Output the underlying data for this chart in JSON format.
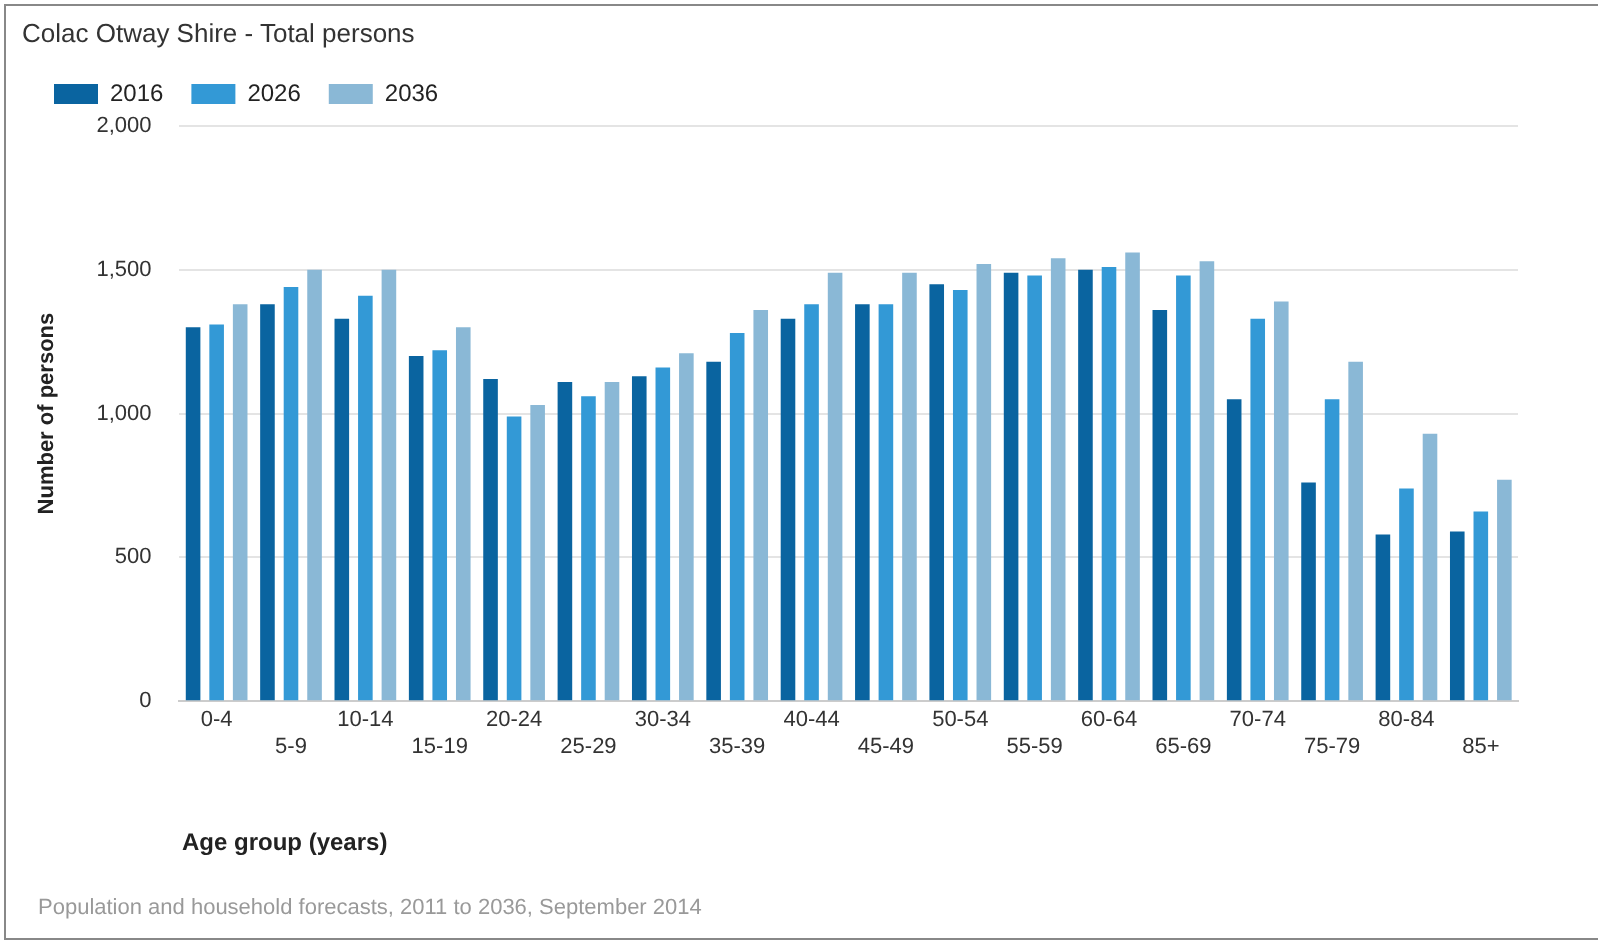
{
  "chart_data": {
    "type": "bar",
    "title": "Colac Otway Shire - Total persons",
    "xlabel": "Age group (years)",
    "ylabel": "Number of persons",
    "categories": [
      "0-4",
      "5-9",
      "10-14",
      "15-19",
      "20-24",
      "25-29",
      "30-34",
      "35-39",
      "40-44",
      "45-49",
      "50-54",
      "55-59",
      "60-64",
      "65-69",
      "70-74",
      "75-79",
      "80-84",
      "85+"
    ],
    "series": [
      {
        "name": "2016",
        "color": "#0a64a0",
        "values": [
          1300,
          1380,
          1330,
          1200,
          1120,
          1110,
          1130,
          1180,
          1330,
          1380,
          1450,
          1490,
          1500,
          1360,
          1050,
          760,
          580,
          590
        ]
      },
      {
        "name": "2026",
        "color": "#3399d6",
        "values": [
          1310,
          1440,
          1410,
          1220,
          990,
          1060,
          1160,
          1280,
          1380,
          1380,
          1430,
          1480,
          1510,
          1480,
          1330,
          1050,
          740,
          660
        ]
      },
      {
        "name": "2036",
        "color": "#8ab8d6",
        "values": [
          1380,
          1500,
          1500,
          1300,
          1030,
          1110,
          1210,
          1360,
          1490,
          1490,
          1520,
          1540,
          1560,
          1530,
          1390,
          1180,
          930,
          770
        ]
      }
    ],
    "ylim": [
      0,
      2000
    ],
    "yticks": [
      {
        "value": 0,
        "label": "0"
      },
      {
        "value": 500,
        "label": "500"
      },
      {
        "value": 1000,
        "label": "1,000"
      },
      {
        "value": 1500,
        "label": "1,500"
      },
      {
        "value": 2000,
        "label": "2,000"
      }
    ],
    "grid": "y",
    "legend": "top left",
    "annotations": [
      "Population and household forecasts, 2011 to 2036, September 2014"
    ]
  }
}
